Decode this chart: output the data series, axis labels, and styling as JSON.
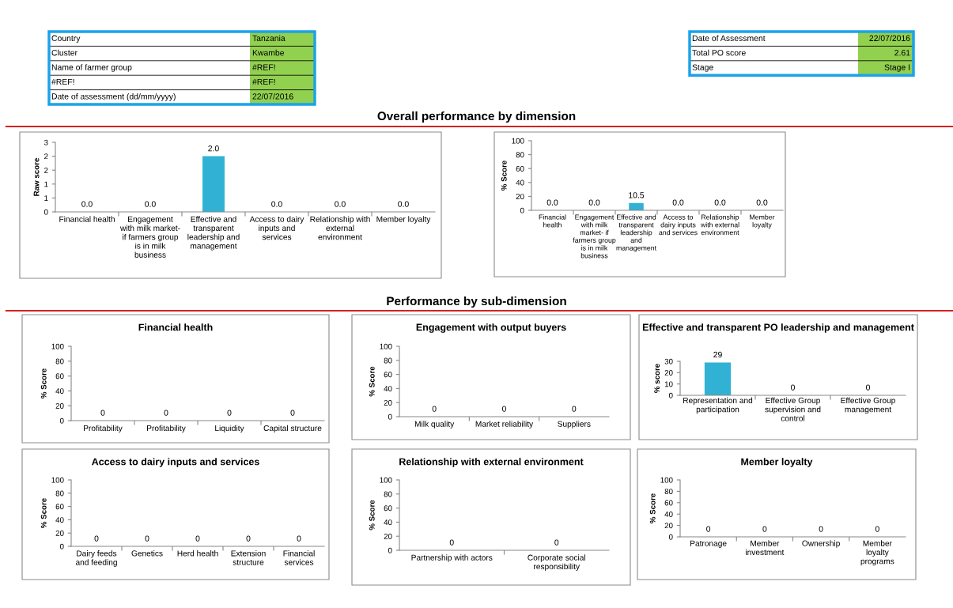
{
  "chart_data": [
    {
      "type": "other",
      "color": "#92d050",
      "annotations": [
        "Country",
        "Tanzania",
        "Cluster",
        "Kwambe",
        "Name of farmer group",
        "#REF!",
        "#REF!",
        "#REF!",
        "Date of assessment (dd/mm/yyyy)",
        "22/07/2016"
      ]
    },
    {
      "type": "other",
      "color": "#92d050",
      "annotations": [
        "Date of Assessment",
        "22/07/2016",
        "Total PO score",
        "2.61",
        "Stage",
        "Stage I"
      ]
    },
    {
      "type": "other",
      "title": "Overall performance by dimension"
    },
    {
      "type": "bar",
      "ylabel": "Raw score",
      "categories": [
        "Financial health",
        "Engagement with milk market- if farmers group is in milk business",
        "Effective and transparent leadership and management",
        "Access to dairy inputs and services",
        "Relationship with external environment",
        "Member loyalty"
      ],
      "values": [
        0,
        0,
        2,
        0,
        0,
        0
      ],
      "value_labels": [
        "0.0",
        "0.0",
        "2.0",
        "0.0",
        "0.0",
        "0.0"
      ],
      "color": "#31b2d4",
      "ylim": [
        0,
        2.5
      ],
      "yticks": [
        0,
        {
          "value": 0.5,
          "label": "1"
        },
        {
          "value": 1,
          "label": "1"
        },
        {
          "value": 1.5,
          "label": "2"
        },
        {
          "value": 2,
          "label": "2"
        },
        {
          "value": 2.5,
          "label": "3"
        }
      ],
      "grid": false
    },
    {
      "type": "bar",
      "ylabel": "% Score",
      "categories": [
        "Financial health",
        "Engagement with milk market- if farmers group is in milk business",
        "Effective and transparent leadership and management",
        "Access to dairy inputs and services",
        "Relationship with external environment",
        "Member loyalty"
      ],
      "values": [
        0,
        0,
        10.5,
        0,
        0,
        0
      ],
      "value_labels": [
        "0.0",
        "0.0",
        "10.5",
        "0.0",
        "0.0",
        "0.0"
      ],
      "color": "#31b2d4",
      "ylim": [
        0,
        100
      ],
      "yticks": [
        0,
        20,
        40,
        60,
        80,
        100
      ],
      "grid": false
    },
    {
      "type": "other",
      "title": "Performance by sub-dimension"
    },
    {
      "type": "bar",
      "title": "Financial health",
      "ylabel": "% Score",
      "categories": [
        "Profitability",
        "Profitability",
        "Liquidity",
        "Capital structure"
      ],
      "values": [
        0,
        0,
        0,
        0
      ],
      "value_labels": [
        "0",
        "0",
        "0",
        "0"
      ],
      "color": "#31b2d4",
      "ylim": [
        0,
        100
      ],
      "yticks": [
        0,
        20,
        40,
        60,
        80,
        100
      ],
      "grid": false
    },
    {
      "type": "bar",
      "title": "Engagement with output buyers",
      "ylabel": "% Score",
      "categories": [
        "Milk quality",
        "Market reliability",
        "Suppliers"
      ],
      "values": [
        0,
        0,
        0
      ],
      "data_labels": true,
      "color": "#31b2d4",
      "ylim": [
        0,
        100
      ],
      "yticks": [
        0,
        20,
        40,
        60,
        80,
        100
      ],
      "grid": false
    },
    {
      "type": "bar",
      "title": "Effective and transparent PO leadership and management",
      "ylabel": "% score",
      "categories": [
        "Representation and participation",
        "Effective Group supervision and control",
        "Effective Group management"
      ],
      "values": [
        29,
        0,
        0
      ],
      "data_labels": true,
      "color": "#31b2d4",
      "ylim": [
        0,
        30
      ],
      "yticks": [
        0,
        10,
        20,
        30
      ],
      "grid": false
    },
    {
      "type": "bar",
      "title": "Access to dairy inputs and services",
      "ylabel": "% Score",
      "categories": [
        "Dairy feeds and feeding",
        "Genetics",
        "Herd health",
        "Extension structure",
        "Financial services"
      ],
      "values": [
        0,
        0,
        0,
        0,
        0
      ],
      "value_labels": [
        "0",
        "0",
        "0",
        "0",
        "0"
      ],
      "color": "#31b2d4",
      "ylim": [
        0,
        100
      ],
      "yticks": [
        0,
        20,
        40,
        60,
        80,
        100
      ],
      "grid": false
    },
    {
      "type": "bar",
      "title": "Relationship with external environment",
      "ylabel": "% Score",
      "categories": [
        "Partnership with actors",
        "Corporate social responsibility"
      ],
      "values": [
        0,
        0
      ],
      "data_labels": true,
      "color": "#31b2d4",
      "ylim": [
        0,
        100
      ],
      "yticks": [
        0,
        20,
        40,
        60,
        80,
        100
      ],
      "grid": false
    },
    {
      "type": "bar",
      "title": "Member loyalty",
      "ylabel": "% Score",
      "categories": [
        "Patronage",
        "Member investment",
        "Ownership",
        "Member loyalty programs"
      ],
      "values": [
        0,
        0,
        0,
        0
      ],
      "data_labels": true,
      "color": "#31b2d4",
      "ylim": [
        0,
        100
      ],
      "yticks": [
        0,
        20,
        40,
        60,
        80,
        100
      ],
      "grid": false
    }
  ]
}
